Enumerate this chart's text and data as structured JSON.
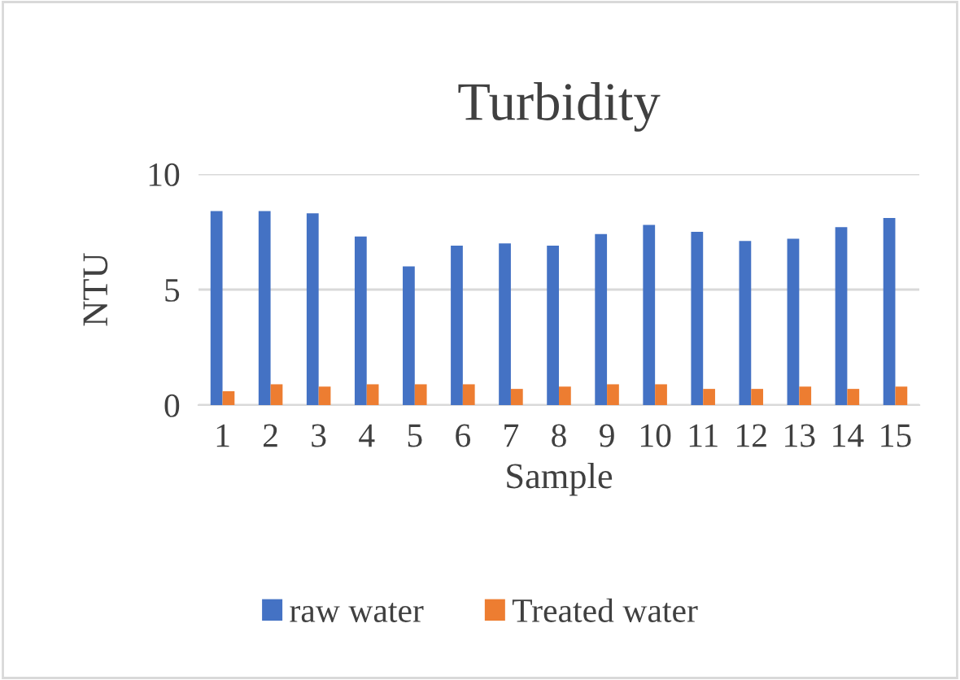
{
  "chart_data": {
    "type": "bar",
    "title": "Turbidity",
    "xlabel": "Sample",
    "ylabel": "NTU",
    "categories": [
      "1",
      "2",
      "3",
      "4",
      "5",
      "6",
      "7",
      "8",
      "9",
      "10",
      "11",
      "12",
      "13",
      "14",
      "15"
    ],
    "series": [
      {
        "name": "raw water",
        "color": "#4472c4",
        "values": [
          8.4,
          8.4,
          8.3,
          7.3,
          6.0,
          6.9,
          7.0,
          6.9,
          7.4,
          7.8,
          7.5,
          7.1,
          7.2,
          7.7,
          8.1
        ]
      },
      {
        "name": "Treated water",
        "color": "#ed7d31",
        "values": [
          0.6,
          0.9,
          0.8,
          0.9,
          0.9,
          0.9,
          0.7,
          0.8,
          0.9,
          0.9,
          0.7,
          0.7,
          0.8,
          0.7,
          0.8
        ]
      }
    ],
    "ylim": [
      0,
      10
    ],
    "yticks": [
      0,
      5,
      10
    ],
    "grid": "y",
    "legend": "bottom"
  }
}
